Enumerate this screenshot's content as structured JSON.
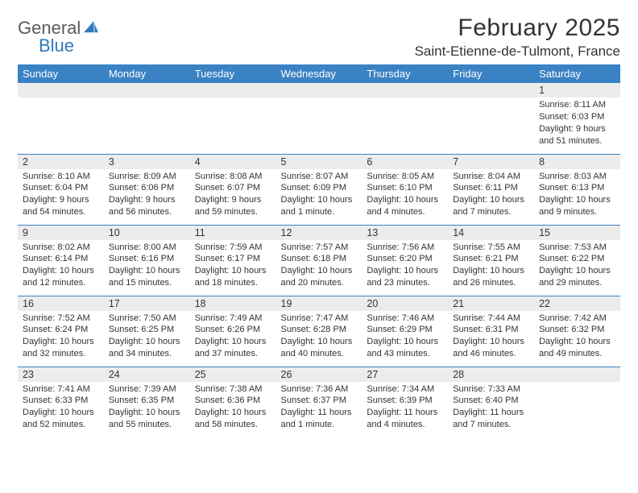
{
  "brand": {
    "word1": "General",
    "word2": "Blue",
    "shape_color": "#2f79bd"
  },
  "title": "February 2025",
  "location": "Saint-Etienne-de-Tulmont, France",
  "header_bg": "#3a82c4",
  "header_fg": "#ffffff",
  "daynum_bg": "#ececec",
  "row_divider": "#3a82c4",
  "weekdays": [
    "Sunday",
    "Monday",
    "Tuesday",
    "Wednesday",
    "Thursday",
    "Friday",
    "Saturday"
  ],
  "weeks": [
    [
      {
        "n": "",
        "lines": []
      },
      {
        "n": "",
        "lines": []
      },
      {
        "n": "",
        "lines": []
      },
      {
        "n": "",
        "lines": []
      },
      {
        "n": "",
        "lines": []
      },
      {
        "n": "",
        "lines": []
      },
      {
        "n": "1",
        "lines": [
          "Sunrise: 8:11 AM",
          "Sunset: 6:03 PM",
          "Daylight: 9 hours and 51 minutes."
        ]
      }
    ],
    [
      {
        "n": "2",
        "lines": [
          "Sunrise: 8:10 AM",
          "Sunset: 6:04 PM",
          "Daylight: 9 hours and 54 minutes."
        ]
      },
      {
        "n": "3",
        "lines": [
          "Sunrise: 8:09 AM",
          "Sunset: 6:06 PM",
          "Daylight: 9 hours and 56 minutes."
        ]
      },
      {
        "n": "4",
        "lines": [
          "Sunrise: 8:08 AM",
          "Sunset: 6:07 PM",
          "Daylight: 9 hours and 59 minutes."
        ]
      },
      {
        "n": "5",
        "lines": [
          "Sunrise: 8:07 AM",
          "Sunset: 6:09 PM",
          "Daylight: 10 hours and 1 minute."
        ]
      },
      {
        "n": "6",
        "lines": [
          "Sunrise: 8:05 AM",
          "Sunset: 6:10 PM",
          "Daylight: 10 hours and 4 minutes."
        ]
      },
      {
        "n": "7",
        "lines": [
          "Sunrise: 8:04 AM",
          "Sunset: 6:11 PM",
          "Daylight: 10 hours and 7 minutes."
        ]
      },
      {
        "n": "8",
        "lines": [
          "Sunrise: 8:03 AM",
          "Sunset: 6:13 PM",
          "Daylight: 10 hours and 9 minutes."
        ]
      }
    ],
    [
      {
        "n": "9",
        "lines": [
          "Sunrise: 8:02 AM",
          "Sunset: 6:14 PM",
          "Daylight: 10 hours and 12 minutes."
        ]
      },
      {
        "n": "10",
        "lines": [
          "Sunrise: 8:00 AM",
          "Sunset: 6:16 PM",
          "Daylight: 10 hours and 15 minutes."
        ]
      },
      {
        "n": "11",
        "lines": [
          "Sunrise: 7:59 AM",
          "Sunset: 6:17 PM",
          "Daylight: 10 hours and 18 minutes."
        ]
      },
      {
        "n": "12",
        "lines": [
          "Sunrise: 7:57 AM",
          "Sunset: 6:18 PM",
          "Daylight: 10 hours and 20 minutes."
        ]
      },
      {
        "n": "13",
        "lines": [
          "Sunrise: 7:56 AM",
          "Sunset: 6:20 PM",
          "Daylight: 10 hours and 23 minutes."
        ]
      },
      {
        "n": "14",
        "lines": [
          "Sunrise: 7:55 AM",
          "Sunset: 6:21 PM",
          "Daylight: 10 hours and 26 minutes."
        ]
      },
      {
        "n": "15",
        "lines": [
          "Sunrise: 7:53 AM",
          "Sunset: 6:22 PM",
          "Daylight: 10 hours and 29 minutes."
        ]
      }
    ],
    [
      {
        "n": "16",
        "lines": [
          "Sunrise: 7:52 AM",
          "Sunset: 6:24 PM",
          "Daylight: 10 hours and 32 minutes."
        ]
      },
      {
        "n": "17",
        "lines": [
          "Sunrise: 7:50 AM",
          "Sunset: 6:25 PM",
          "Daylight: 10 hours and 34 minutes."
        ]
      },
      {
        "n": "18",
        "lines": [
          "Sunrise: 7:49 AM",
          "Sunset: 6:26 PM",
          "Daylight: 10 hours and 37 minutes."
        ]
      },
      {
        "n": "19",
        "lines": [
          "Sunrise: 7:47 AM",
          "Sunset: 6:28 PM",
          "Daylight: 10 hours and 40 minutes."
        ]
      },
      {
        "n": "20",
        "lines": [
          "Sunrise: 7:46 AM",
          "Sunset: 6:29 PM",
          "Daylight: 10 hours and 43 minutes."
        ]
      },
      {
        "n": "21",
        "lines": [
          "Sunrise: 7:44 AM",
          "Sunset: 6:31 PM",
          "Daylight: 10 hours and 46 minutes."
        ]
      },
      {
        "n": "22",
        "lines": [
          "Sunrise: 7:42 AM",
          "Sunset: 6:32 PM",
          "Daylight: 10 hours and 49 minutes."
        ]
      }
    ],
    [
      {
        "n": "23",
        "lines": [
          "Sunrise: 7:41 AM",
          "Sunset: 6:33 PM",
          "Daylight: 10 hours and 52 minutes."
        ]
      },
      {
        "n": "24",
        "lines": [
          "Sunrise: 7:39 AM",
          "Sunset: 6:35 PM",
          "Daylight: 10 hours and 55 minutes."
        ]
      },
      {
        "n": "25",
        "lines": [
          "Sunrise: 7:38 AM",
          "Sunset: 6:36 PM",
          "Daylight: 10 hours and 58 minutes."
        ]
      },
      {
        "n": "26",
        "lines": [
          "Sunrise: 7:36 AM",
          "Sunset: 6:37 PM",
          "Daylight: 11 hours and 1 minute."
        ]
      },
      {
        "n": "27",
        "lines": [
          "Sunrise: 7:34 AM",
          "Sunset: 6:39 PM",
          "Daylight: 11 hours and 4 minutes."
        ]
      },
      {
        "n": "28",
        "lines": [
          "Sunrise: 7:33 AM",
          "Sunset: 6:40 PM",
          "Daylight: 11 hours and 7 minutes."
        ]
      },
      {
        "n": "",
        "lines": []
      }
    ]
  ]
}
